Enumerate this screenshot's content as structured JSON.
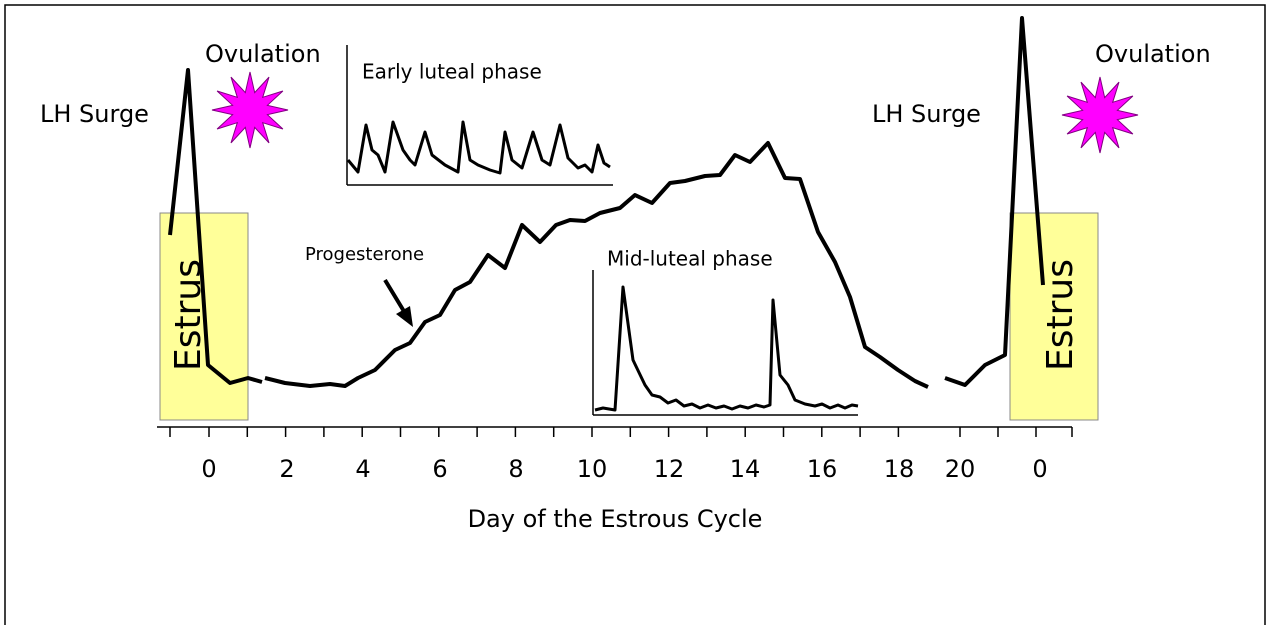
{
  "labels": {
    "ovulation_left": "Ovulation",
    "lh_surge_left": "LH Surge",
    "early_luteal": "Early luteal phase",
    "progesterone": "Progesterone",
    "mid_luteal": "Mid-luteal phase",
    "lh_surge_right": "LH Surge",
    "ovulation_right": "Ovulation",
    "estrus_left": "Estrus",
    "estrus_right": "Estrus"
  },
  "x_axis": {
    "title": "Day of the Estrous Cycle",
    "tick_labels": [
      "0",
      "2",
      "4",
      "6",
      "8",
      "10",
      "12",
      "14",
      "16",
      "18",
      "20",
      "0"
    ]
  }
}
